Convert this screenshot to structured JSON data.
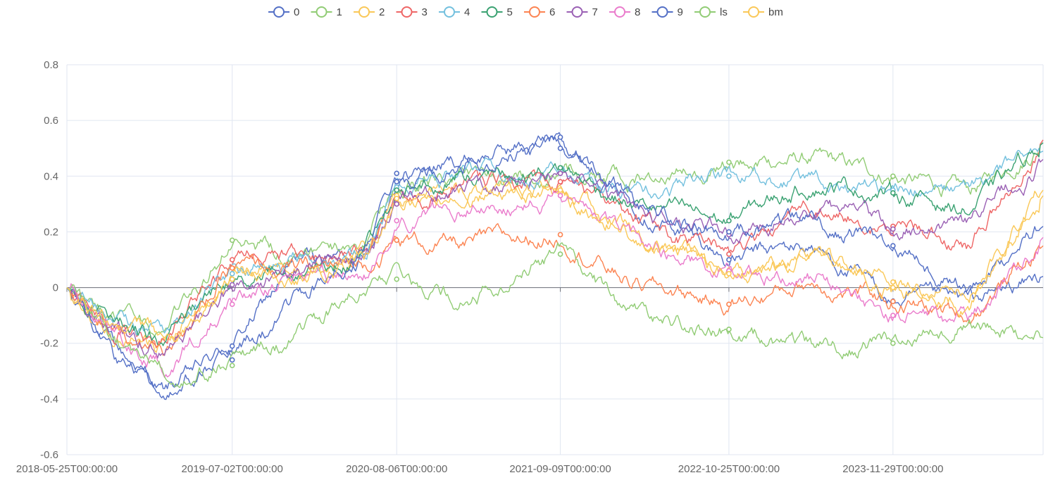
{
  "chart_data": {
    "type": "line",
    "title": "",
    "xlabel": "",
    "ylabel": "",
    "ylim": [
      -0.6,
      0.8
    ],
    "yticks": [
      "-0.6",
      "-0.4",
      "-0.2",
      "0",
      "0.2",
      "0.4",
      "0.6",
      "0.8"
    ],
    "x_start": "2018-05-25T00:00:00",
    "x_end": "2024-11-29T00:00:00",
    "xticks": [
      "2018-05-25T00:00:00",
      "2019-07-02T00:00:00",
      "2020-08-06T00:00:00",
      "2021-09-09T00:00:00",
      "2022-10-25T00:00:00",
      "2023-11-29T00:00:00"
    ],
    "grid": true,
    "legend_position": "top-center",
    "x_index": [
      "2018-05-25T00:00:00",
      "2018-09-20T00:00:00",
      "2019-01-17T00:00:00",
      "2019-07-02T00:00:00",
      "2019-12-10T00:00:00",
      "2020-05-20T00:00:00",
      "2020-08-06T00:00:00",
      "2021-01-20T00:00:00",
      "2021-09-09T00:00:00",
      "2022-03-01T00:00:00",
      "2022-10-25T00:00:00",
      "2023-05-15T00:00:00",
      "2023-11-29T00:00:00",
      "2024-06-03T00:00:00",
      "2024-11-29T00:00:00"
    ],
    "series": [
      {
        "name": "0",
        "color": "#5470c6",
        "values": [
          0.0,
          -0.22,
          -0.38,
          -0.21,
          0.1,
          0.12,
          0.41,
          0.46,
          0.54,
          0.32,
          0.1,
          0.15,
          -0.05,
          -0.06,
          0.04
        ]
      },
      {
        "name": "1",
        "color": "#91cc75",
        "values": [
          0.0,
          -0.1,
          -0.18,
          0.17,
          0.1,
          0.15,
          0.35,
          0.4,
          0.43,
          0.38,
          0.45,
          0.46,
          0.4,
          0.34,
          0.52
        ]
      },
      {
        "name": "2",
        "color": "#fac858",
        "values": [
          0.0,
          -0.16,
          -0.22,
          0.05,
          0.06,
          0.1,
          0.33,
          0.34,
          0.34,
          0.2,
          0.06,
          0.12,
          0.02,
          -0.01,
          0.35
        ]
      },
      {
        "name": "3",
        "color": "#ee6666",
        "values": [
          0.0,
          -0.14,
          -0.18,
          0.1,
          0.12,
          0.12,
          0.3,
          0.36,
          0.38,
          0.25,
          0.12,
          0.28,
          0.22,
          0.15,
          0.53
        ]
      },
      {
        "name": "4",
        "color": "#73c0de",
        "values": [
          0.0,
          -0.12,
          -0.16,
          0.05,
          0.08,
          0.12,
          0.36,
          0.4,
          0.42,
          0.33,
          0.4,
          0.38,
          0.35,
          0.36,
          0.49
        ]
      },
      {
        "name": "5",
        "color": "#3ba272",
        "values": [
          0.0,
          -0.12,
          -0.18,
          0.03,
          0.08,
          0.1,
          0.35,
          0.4,
          0.43,
          0.3,
          0.24,
          0.38,
          0.34,
          0.28,
          0.52
        ]
      },
      {
        "name": "6",
        "color": "#fc8452",
        "values": [
          0.0,
          -0.15,
          -0.25,
          0.07,
          0.06,
          0.08,
          0.17,
          0.15,
          0.19,
          0.02,
          -0.06,
          0.02,
          -0.05,
          -0.1,
          0.15
        ]
      },
      {
        "name": "7",
        "color": "#9a60b4",
        "values": [
          0.0,
          -0.14,
          -0.22,
          0.01,
          0.06,
          0.1,
          0.3,
          0.34,
          0.41,
          0.28,
          0.19,
          0.3,
          0.21,
          0.22,
          0.46
        ]
      },
      {
        "name": "8",
        "color": "#ea7ccc",
        "values": [
          0.0,
          -0.16,
          -0.28,
          -0.06,
          0.02,
          0.04,
          0.24,
          0.3,
          0.33,
          0.18,
          0.06,
          0.04,
          -0.1,
          -0.12,
          0.18
        ]
      },
      {
        "name": "9",
        "color": "#5470c6",
        "values": [
          0.0,
          -0.25,
          -0.34,
          -0.26,
          -0.05,
          0.12,
          0.38,
          0.45,
          0.5,
          0.3,
          0.2,
          0.24,
          0.15,
          0.0,
          0.22
        ]
      },
      {
        "name": "ls",
        "color": "#91cc75",
        "values": [
          0.0,
          -0.2,
          -0.3,
          -0.28,
          -0.18,
          0.0,
          0.03,
          -0.04,
          0.12,
          -0.1,
          -0.15,
          -0.22,
          -0.2,
          -0.12,
          -0.18
        ]
      },
      {
        "name": "bm",
        "color": "#fac858",
        "values": [
          0.0,
          -0.14,
          -0.2,
          0.03,
          0.05,
          0.1,
          0.32,
          0.34,
          0.35,
          0.2,
          0.05,
          0.1,
          0.0,
          -0.05,
          0.33
        ]
      }
    ]
  }
}
